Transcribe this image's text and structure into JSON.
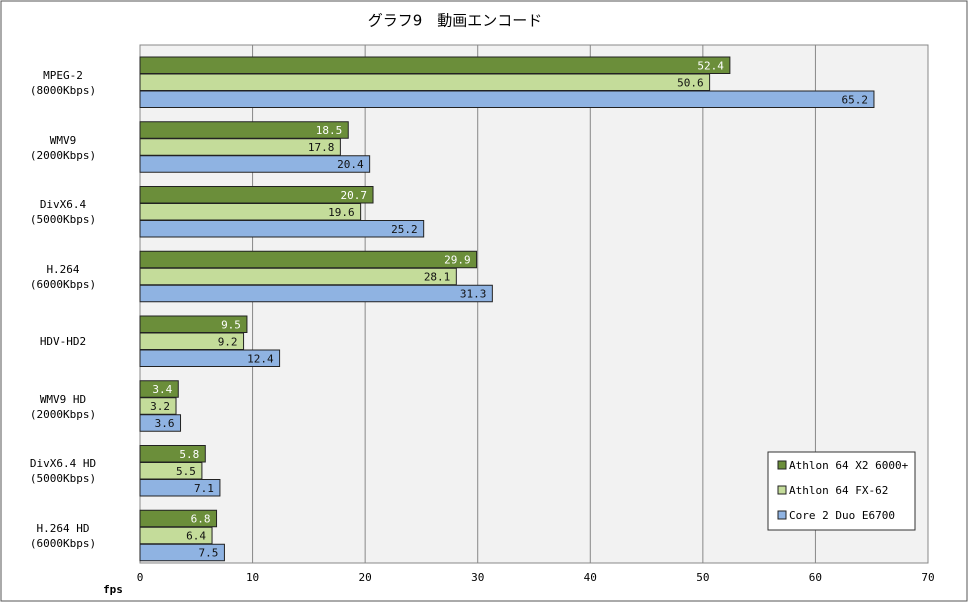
{
  "chart_data": {
    "type": "bar",
    "orientation": "horizontal",
    "title": "グラフ9　動画エンコード",
    "x_label": "fps",
    "categories": [
      "MPEG-2\n(8000Kbps)",
      "WMV9\n(2000Kbps)",
      "DivX6.4\n(5000Kbps)",
      "H.264\n(6000Kbps)",
      "HDV-HD2",
      "WMV9 HD\n(2000Kbps)",
      "DivX6.4 HD\n(5000Kbps)",
      "H.264 HD\n(6000Kbps)"
    ],
    "series": [
      {
        "name": "Athlon 64 X2 6000+",
        "color": "#6b8e3a",
        "values": [
          52.4,
          18.5,
          20.7,
          29.9,
          9.5,
          3.4,
          5.8,
          6.8
        ]
      },
      {
        "name": "Athlon 64 FX-62",
        "color": "#c4dc9a",
        "values": [
          50.6,
          17.8,
          19.6,
          28.1,
          9.2,
          3.2,
          5.5,
          6.4
        ]
      },
      {
        "name": "Core 2 Duo E6700",
        "color": "#8fb3e2",
        "values": [
          65.2,
          20.4,
          25.2,
          31.3,
          12.4,
          3.6,
          7.1,
          7.5
        ]
      }
    ],
    "xlim": [
      0,
      70
    ],
    "xticks": [
      0,
      10,
      20,
      30,
      40,
      50,
      60,
      70
    ],
    "grid": true,
    "legend": "lower right"
  }
}
